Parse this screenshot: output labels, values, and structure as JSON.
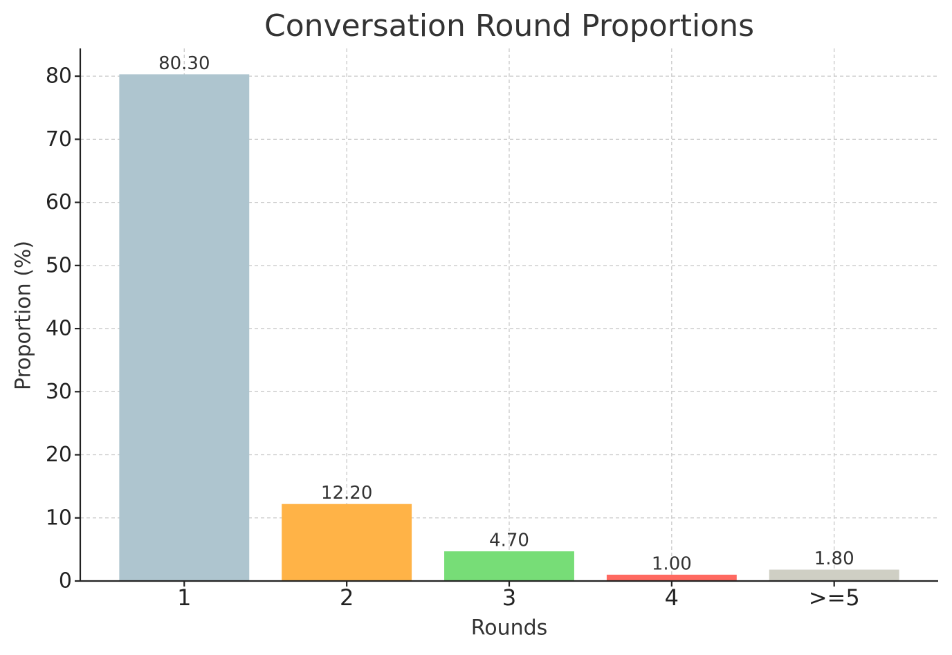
{
  "chart_data": {
    "type": "bar",
    "title": "Conversation Round Proportions",
    "x_label": "Rounds",
    "y_label": "Proportion (%)",
    "categories": [
      "1",
      "2",
      "3",
      "4",
      ">=5"
    ],
    "values": [
      80.3,
      12.2,
      4.7,
      1.0,
      1.8
    ],
    "value_labels": [
      "80.30",
      "12.20",
      "4.70",
      "1.00",
      "1.80"
    ],
    "colors": [
      "#aec5cf",
      "#ffb347",
      "#77dd77",
      "#ff6961",
      "#cfcfc4"
    ],
    "ylim": [
      0,
      84.4
    ],
    "yticks": [
      0,
      10,
      20,
      30,
      40,
      50,
      60,
      70,
      80
    ],
    "grid": true
  }
}
